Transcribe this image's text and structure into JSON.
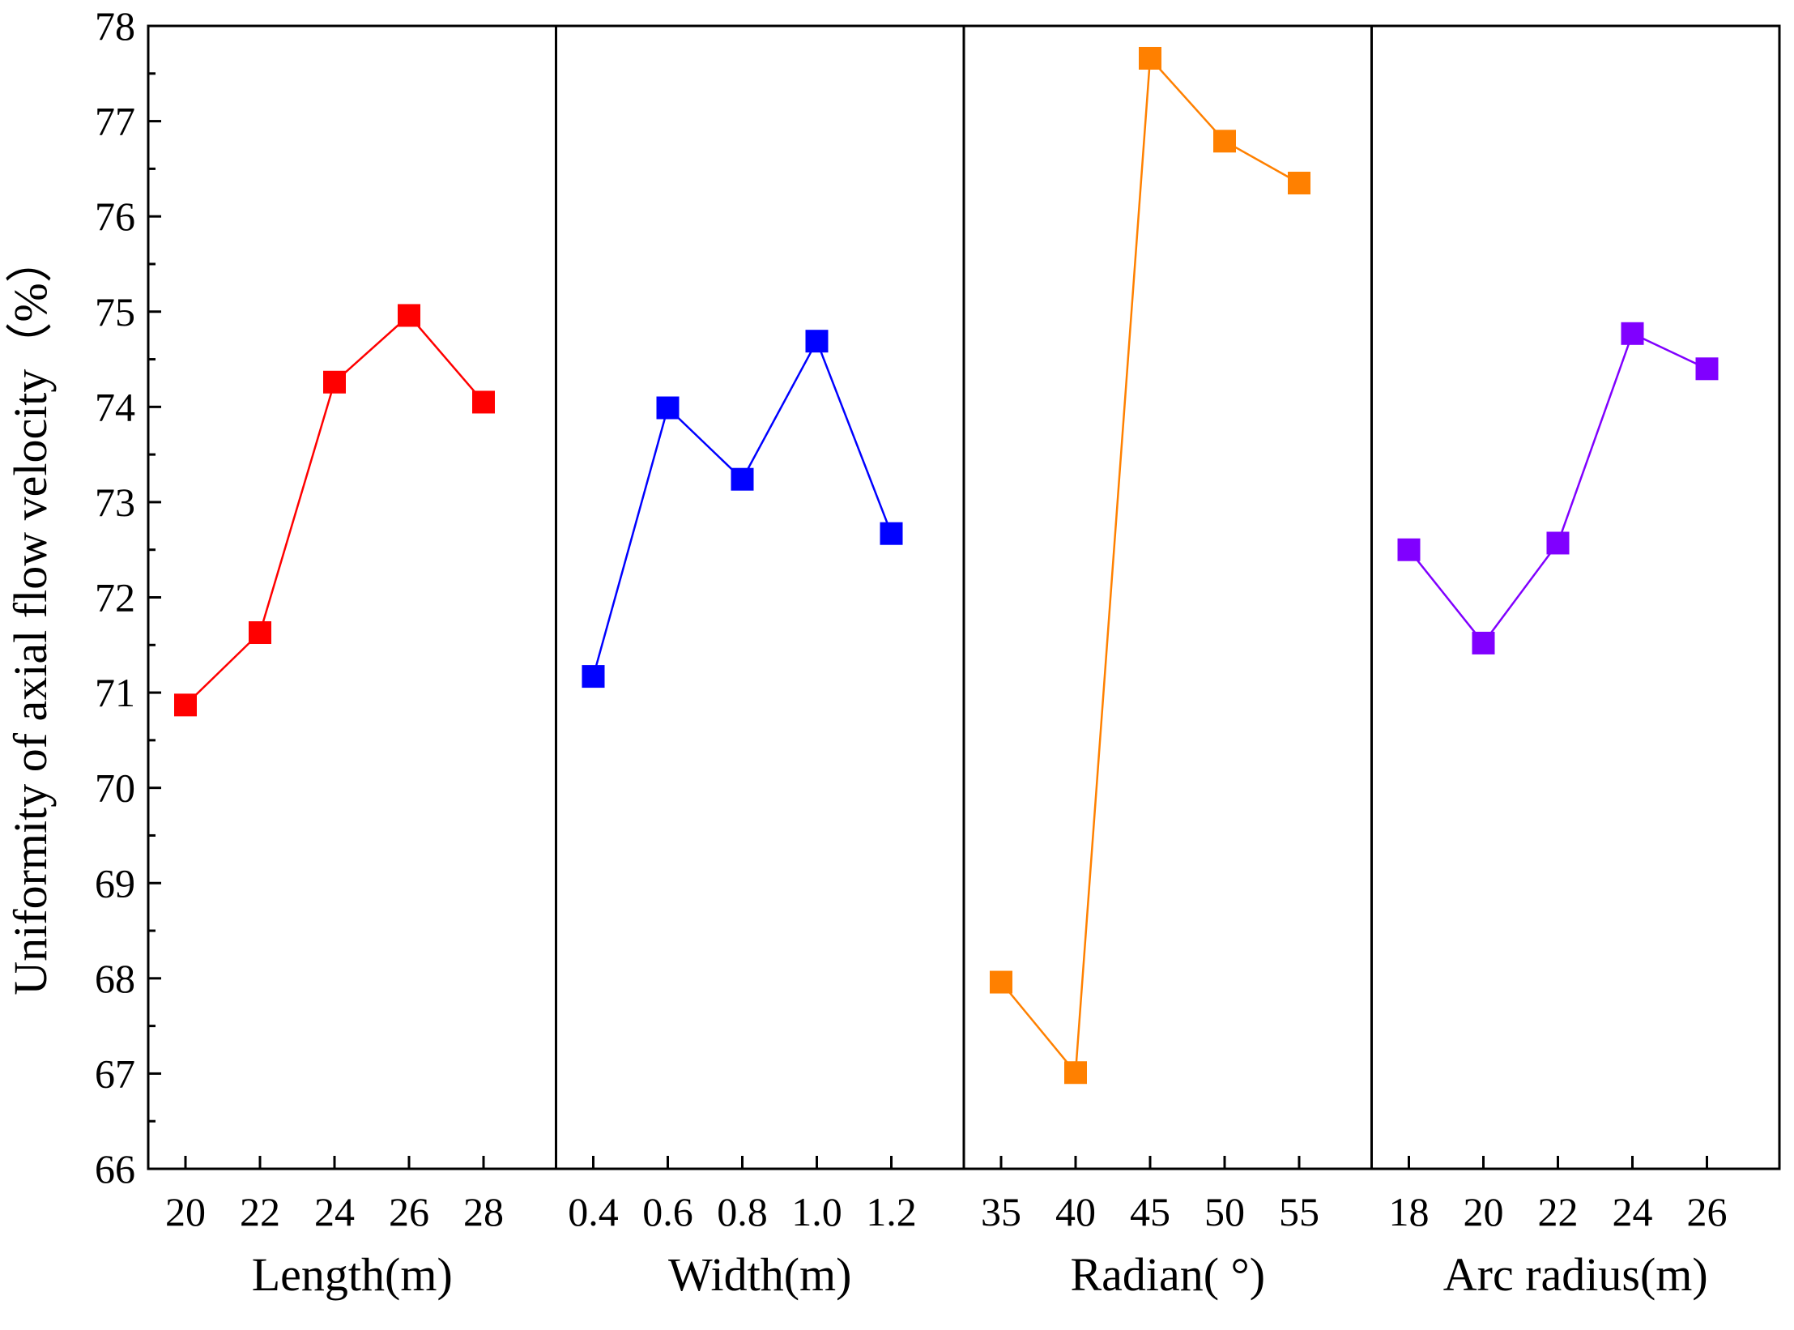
{
  "chart_data": {
    "type": "line",
    "ylabel": "Uniformity of axial flow velocity（%）",
    "ylim": [
      66,
      78
    ],
    "yticks": [
      "66",
      "67",
      "68",
      "69",
      "70",
      "71",
      "72",
      "73",
      "74",
      "75",
      "76",
      "77",
      "78"
    ],
    "grid": false,
    "panels": [
      {
        "xlabel": "Length(m)",
        "color": "#ff0000",
        "x": [
          "20",
          "22",
          "24",
          "26",
          "28"
        ],
        "values": [
          70.87,
          71.63,
          74.26,
          74.96,
          74.05
        ]
      },
      {
        "xlabel": "Width(m)",
        "color": "#0000ff",
        "x": [
          "0.4",
          "0.6",
          "0.8",
          "1.0",
          "1.2"
        ],
        "values": [
          71.17,
          73.99,
          73.24,
          74.69,
          72.67
        ]
      },
      {
        "xlabel": "Radian( °)",
        "color": "#ff8000",
        "x": [
          "35",
          "40",
          "45",
          "50",
          "55"
        ],
        "values": [
          67.96,
          67.01,
          77.66,
          76.79,
          76.35
        ]
      },
      {
        "xlabel": "Arc radius(m)",
        "color": "#8000ff",
        "x": [
          "18",
          "20",
          "22",
          "24",
          "26"
        ],
        "values": [
          72.5,
          71.52,
          72.57,
          74.77,
          74.4
        ]
      }
    ]
  }
}
